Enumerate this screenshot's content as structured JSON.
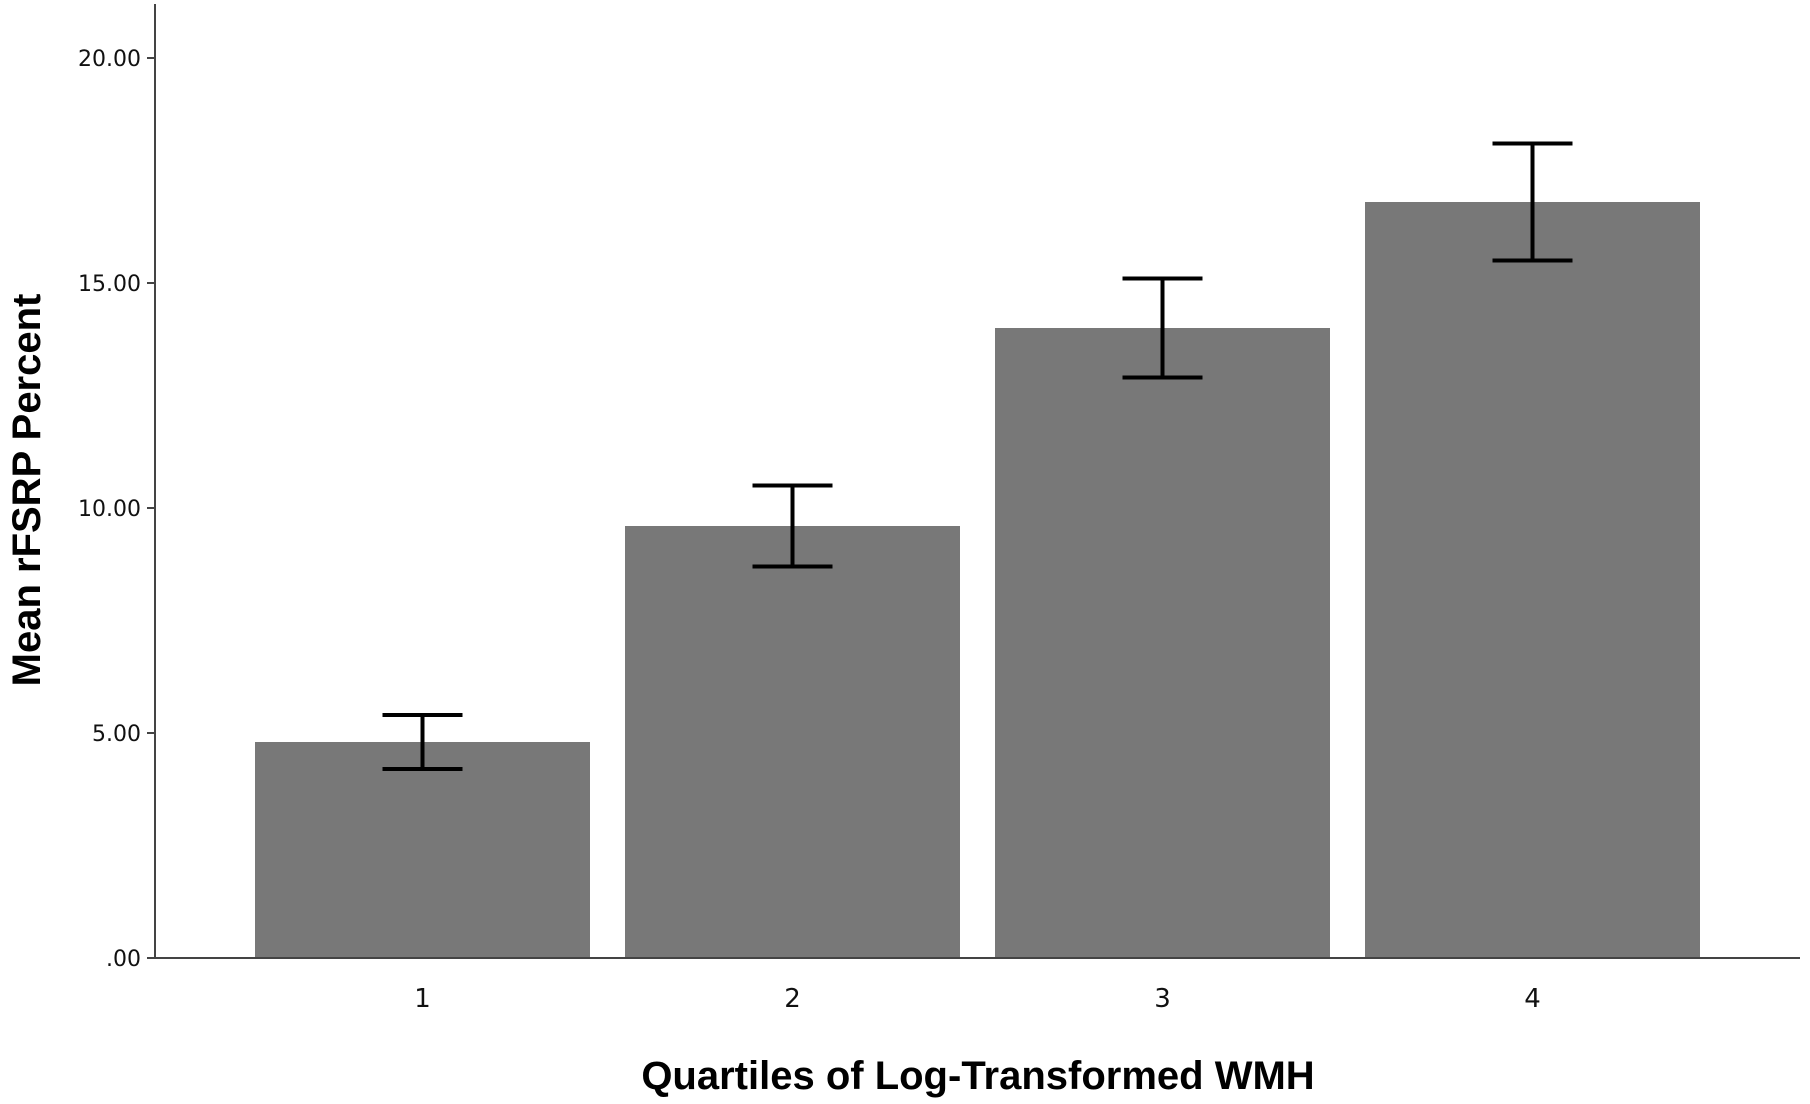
{
  "chart_data": {
    "type": "bar",
    "categories": [
      "1",
      "2",
      "3",
      "4"
    ],
    "values": [
      4.8,
      9.6,
      14.0,
      16.8
    ],
    "error_bars": {
      "lower": [
        4.2,
        8.7,
        12.9,
        15.5
      ],
      "upper": [
        5.4,
        10.5,
        15.1,
        18.1
      ]
    },
    "xlabel": "Quartiles of Log-Transformed WMH",
    "ylabel": "Mean rFSRP Percent",
    "ylim": [
      0,
      21.2
    ],
    "yticks": [
      0,
      5,
      10,
      15,
      20
    ],
    "ytick_labels": [
      ".00",
      "5.00",
      "10.00",
      "15.00",
      "20.00"
    ],
    "grid": false,
    "legend": "none",
    "colors": {
      "bar": "#787878",
      "error_bar": "#000000",
      "axis": "#444444"
    }
  }
}
